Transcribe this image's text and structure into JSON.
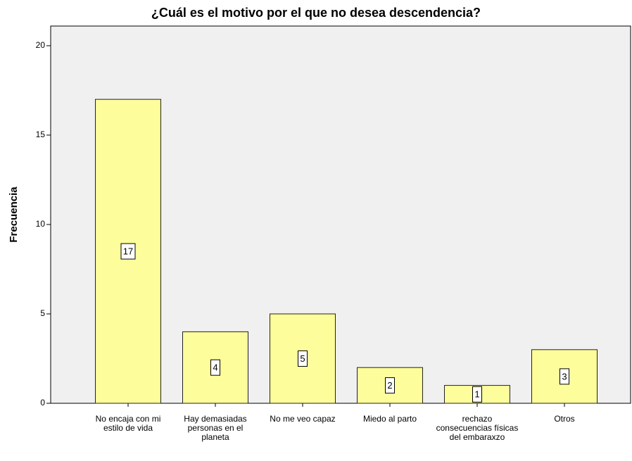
{
  "chart_data": {
    "type": "bar",
    "title": "¿Cuál es el motivo por el que no desea descendencia?",
    "y_label": "Frecuencia",
    "categories": [
      "No encaja con mi estilo de vida",
      "Hay demasiadas personas en el planeta",
      "No me veo capaz",
      "Miedo al parto",
      "rechazo consecuencias físicas del embaraxzo",
      "Otros"
    ],
    "values": [
      17,
      4,
      5,
      2,
      1,
      3
    ],
    "color": "#fdfd9c",
    "ylim": [
      0,
      21.1
    ],
    "yticks": [
      0,
      5,
      10,
      15,
      20
    ],
    "grid": false
  }
}
